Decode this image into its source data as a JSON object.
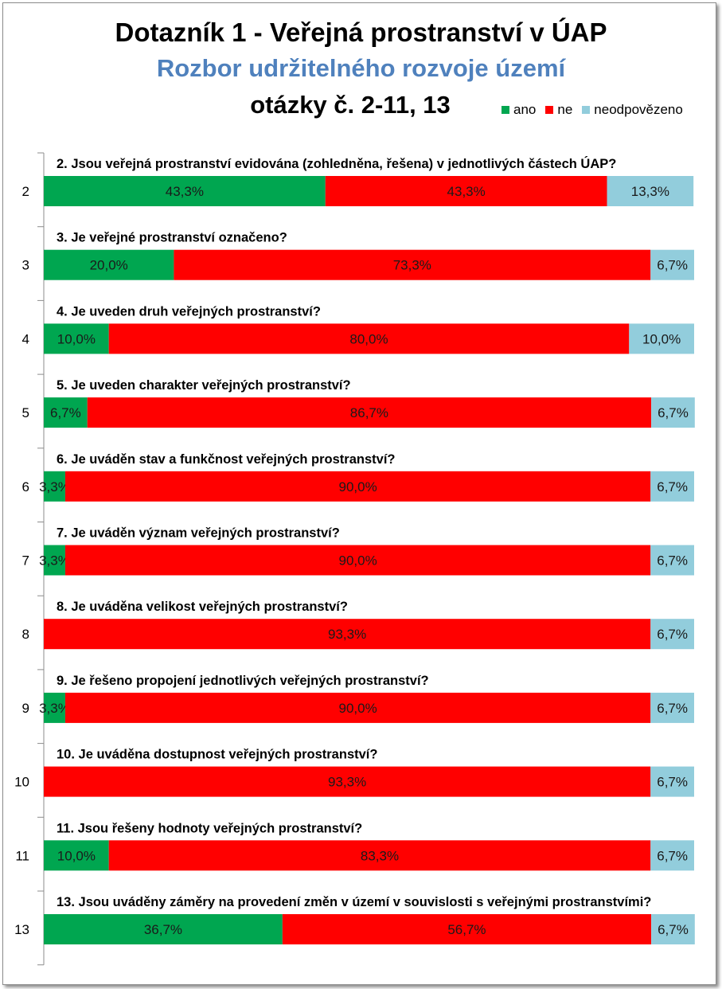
{
  "title": "Dotazník 1 - Veřejná prostranství v ÚAP",
  "subtitle": "Rozbor udržitelného rozvoje území",
  "subtitle2": "otázky č. 2-11, 13",
  "colors": {
    "ano": "#00a650",
    "ne": "#ff0000",
    "neodpovezeno": "#92cddc",
    "title": "#000000",
    "subtitle": "#4f81bd"
  },
  "chart_data": {
    "type": "bar",
    "orientation": "horizontal",
    "stacked": true,
    "percent_stacked": true,
    "legend_position": "top-right",
    "categories": [
      "2",
      "3",
      "4",
      "5",
      "6",
      "7",
      "8",
      "9",
      "10",
      "11",
      "13"
    ],
    "questions": [
      "2. Jsou veřejná prostranství evidována (zohledněna, řešena) v jednotlivých částech ÚAP?",
      "3. Je veřejné prostranství označeno?",
      "4. Je uveden druh veřejných prostranství?",
      "5. Je uveden charakter veřejných prostranství?",
      "6. Je uváděn stav a funkčnost veřejných prostranství?",
      "7. Je uváděn význam veřejných prostranství?",
      "8. Je uváděna velikost veřejných prostranství?",
      "9. Je řešeno propojení jednotlivých veřejných prostranství?",
      "10. Je uváděna dostupnost veřejných prostranství?",
      "11. Jsou řešeny hodnoty veřejných prostranství?",
      "13. Jsou uváděny záměry na provedení změn v území v souvislosti s veřejnými prostranstvími?"
    ],
    "series": [
      {
        "name": "ano",
        "color": "#00a650",
        "values": [
          43.3,
          20.0,
          10.0,
          6.7,
          3.3,
          3.3,
          0,
          3.3,
          0,
          10.0,
          36.7
        ],
        "labels": [
          "43,3%",
          "20,0%",
          "10,0%",
          "6,7%",
          "3,3%",
          "3,3%",
          "",
          "3,3%",
          "",
          "10,0%",
          "36,7%"
        ]
      },
      {
        "name": "ne",
        "color": "#ff0000",
        "values": [
          43.3,
          73.3,
          80.0,
          86.7,
          90.0,
          90.0,
          93.3,
          90.0,
          93.3,
          83.3,
          56.7
        ],
        "labels": [
          "43,3%",
          "73,3%",
          "80,0%",
          "86,7%",
          "90,0%",
          "90,0%",
          "93,3%",
          "90,0%",
          "93,3%",
          "83,3%",
          "56,7%"
        ]
      },
      {
        "name": "neodpovězeno",
        "color": "#92cddc",
        "values": [
          13.3,
          6.7,
          10.0,
          6.7,
          6.7,
          6.7,
          6.7,
          6.7,
          6.7,
          6.7,
          6.7
        ],
        "labels": [
          "13,3%",
          "6,7%",
          "10,0%",
          "6,7%",
          "6,7%",
          "6,7%",
          "6,7%",
          "6,7%",
          "6,7%",
          "6,7%",
          "6,7%"
        ]
      }
    ],
    "xlim": [
      0,
      100
    ],
    "grid": false
  }
}
